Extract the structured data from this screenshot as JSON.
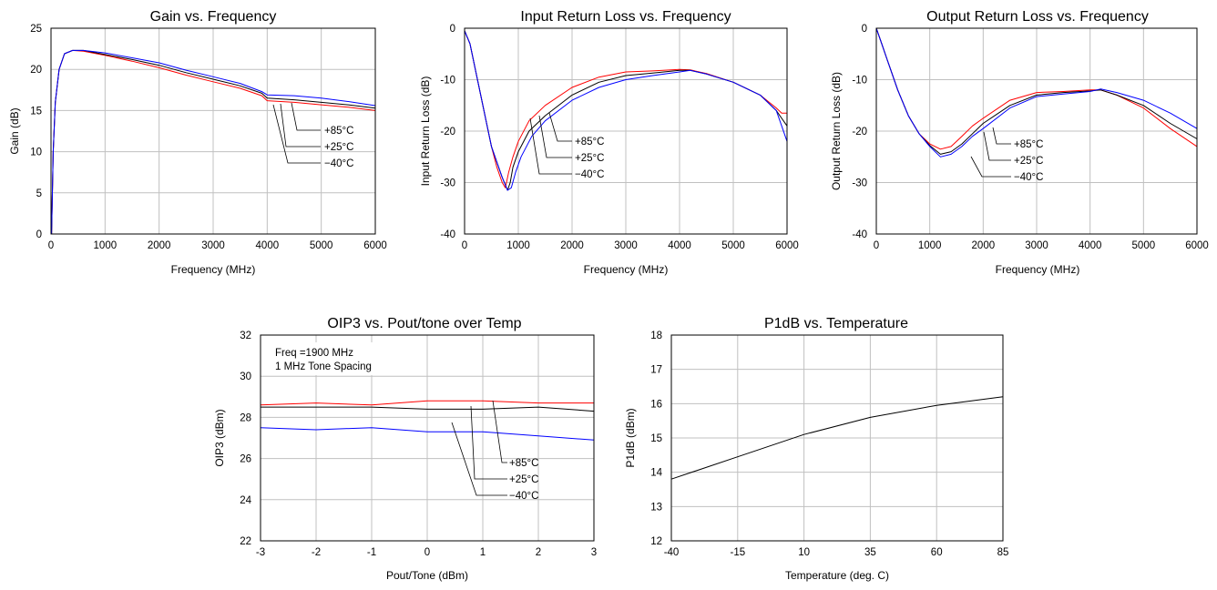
{
  "colors": {
    "hot": "#ff0000",
    "room": "#000000",
    "cold": "#0000ff"
  },
  "chart_data": [
    {
      "id": "gain",
      "type": "line",
      "title": "Gain vs. Frequency",
      "xlabel": "Frequency (MHz)",
      "ylabel": "Gain (dB)",
      "xlim": [
        0,
        6000
      ],
      "ylim": [
        0,
        25
      ],
      "xticks": [
        0,
        1000,
        2000,
        3000,
        4000,
        5000,
        6000
      ],
      "yticks": [
        0,
        5,
        10,
        15,
        20,
        25
      ],
      "grid": true,
      "legend": [
        "+85°C",
        "+25°C",
        "−40°C"
      ],
      "series": [
        {
          "name": "+85°C",
          "color": "#ff0000",
          "x": [
            10,
            40,
            80,
            150,
            250,
            400,
            600,
            1000,
            1500,
            2000,
            2500,
            3000,
            3500,
            3900,
            4000,
            4500,
            5000,
            5500,
            6000
          ],
          "y": [
            0,
            10,
            16,
            20,
            21.9,
            22.3,
            22.2,
            21.7,
            21,
            20.2,
            19.3,
            18.5,
            17.7,
            16.8,
            16.2,
            16,
            15.7,
            15.4,
            15
          ]
        },
        {
          "name": "+25°C",
          "color": "#000000",
          "x": [
            10,
            40,
            80,
            150,
            250,
            400,
            600,
            1000,
            1500,
            2000,
            2500,
            3000,
            3500,
            3900,
            4000,
            4500,
            5000,
            5500,
            6000
          ],
          "y": [
            0,
            10,
            16,
            20,
            21.9,
            22.3,
            22.3,
            21.8,
            21.2,
            20.5,
            19.6,
            18.8,
            18,
            17.1,
            16.5,
            16.3,
            16,
            15.7,
            15.3
          ]
        },
        {
          "name": "−40°C",
          "color": "#0000ff",
          "x": [
            10,
            40,
            80,
            150,
            250,
            400,
            600,
            1000,
            1500,
            2000,
            2500,
            3000,
            3500,
            3900,
            4000,
            4500,
            5000,
            5500,
            6000
          ],
          "y": [
            0,
            10,
            16,
            20,
            21.9,
            22.3,
            22.3,
            22,
            21.4,
            20.8,
            19.9,
            19.1,
            18.3,
            17.3,
            16.9,
            16.8,
            16.5,
            16.1,
            15.6
          ]
        }
      ]
    },
    {
      "id": "irl",
      "type": "line",
      "title": "Input Return Loss vs. Frequency",
      "xlabel": "Frequency (MHz)",
      "ylabel": "Input Return Loss (dB)",
      "xlim": [
        0,
        6000
      ],
      "ylim": [
        -40,
        0
      ],
      "xticks": [
        0,
        1000,
        2000,
        3000,
        4000,
        5000,
        6000
      ],
      "yticks": [
        0,
        -10,
        -20,
        -30,
        -40
      ],
      "grid": true,
      "legend": [
        "+85°C",
        "+25°C",
        "−40°C"
      ],
      "series": [
        {
          "name": "+85°C",
          "color": "#ff0000",
          "x": [
            0,
            100,
            200,
            300,
            400,
            500,
            600,
            700,
            760,
            820,
            900,
            1000,
            1200,
            1500,
            2000,
            2500,
            3000,
            3500,
            4000,
            4200,
            4500,
            5000,
            5500,
            5800,
            5900,
            6000
          ],
          "y": [
            -0.5,
            -3,
            -8,
            -13,
            -18,
            -23,
            -27,
            -30,
            -31,
            -28,
            -25,
            -22,
            -18,
            -15,
            -11.5,
            -9.5,
            -8.5,
            -8.3,
            -8,
            -8.1,
            -8.8,
            -10.5,
            -13,
            -15.5,
            -16.5,
            -16.5
          ]
        },
        {
          "name": "+25°C",
          "color": "#000000",
          "x": [
            0,
            100,
            200,
            300,
            400,
            500,
            600,
            700,
            800,
            850,
            900,
            1000,
            1200,
            1500,
            2000,
            2500,
            3000,
            3500,
            4000,
            4200,
            4500,
            5000,
            5500,
            5800,
            5900,
            6000
          ],
          "y": [
            -0.5,
            -3,
            -8,
            -13,
            -18,
            -23,
            -26,
            -29,
            -31.5,
            -30,
            -27,
            -24,
            -20,
            -17,
            -13,
            -10.5,
            -9.2,
            -8.7,
            -8.2,
            -8.2,
            -8.9,
            -10.5,
            -13,
            -16,
            -17.5,
            -19
          ]
        },
        {
          "name": "−40°C",
          "color": "#0000ff",
          "x": [
            0,
            100,
            200,
            300,
            400,
            500,
            600,
            700,
            800,
            870,
            950,
            1050,
            1250,
            1500,
            2000,
            2500,
            3000,
            3500,
            4000,
            4200,
            4500,
            5000,
            5500,
            5800,
            5900,
            6000
          ],
          "y": [
            -0.5,
            -3,
            -8,
            -13,
            -18,
            -23,
            -26,
            -29,
            -31.5,
            -31,
            -28,
            -25,
            -21,
            -18,
            -14,
            -11.5,
            -10,
            -9.2,
            -8.5,
            -8.2,
            -8.9,
            -10.5,
            -13,
            -16,
            -19,
            -22
          ]
        }
      ]
    },
    {
      "id": "orl",
      "type": "line",
      "title": "Output Return Loss vs. Frequency",
      "xlabel": "Frequency (MHz)",
      "ylabel": "Output Return Loss (dB)",
      "xlim": [
        0,
        6000
      ],
      "ylim": [
        -40,
        0
      ],
      "xticks": [
        0,
        1000,
        2000,
        3000,
        4000,
        5000,
        6000
      ],
      "yticks": [
        0,
        -10,
        -20,
        -30,
        -40
      ],
      "grid": true,
      "legend": [
        "+85°C",
        "+25°C",
        "−40°C"
      ],
      "series": [
        {
          "name": "+85°C",
          "color": "#ff0000",
          "x": [
            0,
            100,
            200,
            300,
            400,
            600,
            800,
            1000,
            1200,
            1400,
            1600,
            1800,
            2000,
            2500,
            3000,
            3500,
            4000,
            4200,
            4500,
            5000,
            5500,
            6000
          ],
          "y": [
            0,
            -3,
            -6,
            -9,
            -12,
            -17,
            -20.5,
            -22.5,
            -23.5,
            -23,
            -21,
            -19,
            -17.5,
            -14,
            -12.5,
            -12.3,
            -12,
            -12,
            -13,
            -15.5,
            -19.5,
            -23
          ]
        },
        {
          "name": "+25°C",
          "color": "#000000",
          "x": [
            0,
            100,
            200,
            300,
            400,
            600,
            800,
            1000,
            1200,
            1400,
            1600,
            1800,
            2000,
            2500,
            3000,
            3500,
            4000,
            4200,
            4500,
            5000,
            5500,
            6000
          ],
          "y": [
            0,
            -3,
            -6,
            -9,
            -12,
            -17,
            -20.5,
            -22.8,
            -24.5,
            -24,
            -22.5,
            -20.5,
            -18.5,
            -15,
            -13,
            -12.5,
            -12.2,
            -12,
            -13,
            -15,
            -18.5,
            -21.5
          ]
        },
        {
          "name": "−40°C",
          "color": "#0000ff",
          "x": [
            0,
            100,
            200,
            300,
            400,
            600,
            800,
            1000,
            1200,
            1400,
            1600,
            1800,
            2000,
            2500,
            3000,
            3500,
            4000,
            4200,
            4500,
            5000,
            5500,
            6000
          ],
          "y": [
            0,
            -3,
            -6,
            -9,
            -12,
            -17,
            -20.5,
            -23,
            -25,
            -24.5,
            -23,
            -21,
            -19.5,
            -15.5,
            -13.3,
            -12.8,
            -12.3,
            -11.8,
            -12.5,
            -14,
            -16.5,
            -19.5
          ]
        }
      ]
    },
    {
      "id": "oip3",
      "type": "line",
      "title": "OIP3 vs. Pout/tone over Temp",
      "xlabel": "Pout/Tone (dBm)",
      "ylabel": "OIP3 (dBm)",
      "xlim": [
        -3,
        3
      ],
      "ylim": [
        22,
        32
      ],
      "xticks": [
        -3,
        -2,
        -1,
        0,
        1,
        2,
        3
      ],
      "yticks": [
        22,
        24,
        26,
        28,
        30,
        32
      ],
      "grid": true,
      "annotation": [
        "Freq =1900 MHz",
        "1 MHz Tone Spacing"
      ],
      "legend": [
        "+85°C",
        "+25°C",
        "−40°C"
      ],
      "series": [
        {
          "name": "+85°C",
          "color": "#ff0000",
          "x": [
            -3,
            -2,
            -1,
            0,
            1,
            2,
            3
          ],
          "y": [
            28.6,
            28.7,
            28.6,
            28.8,
            28.8,
            28.7,
            28.7
          ]
        },
        {
          "name": "+25°C",
          "color": "#000000",
          "x": [
            -3,
            -2,
            -1,
            0,
            1,
            2,
            3
          ],
          "y": [
            28.5,
            28.5,
            28.5,
            28.4,
            28.4,
            28.5,
            28.3
          ]
        },
        {
          "name": "−40°C",
          "color": "#0000ff",
          "x": [
            -3,
            -2,
            -1,
            0,
            1,
            2,
            3
          ],
          "y": [
            27.5,
            27.4,
            27.5,
            27.3,
            27.3,
            27.1,
            26.9
          ]
        }
      ]
    },
    {
      "id": "p1db",
      "type": "line",
      "title": "P1dB vs. Temperature",
      "xlabel": "Temperature (deg. C)",
      "ylabel": "P1dB (dBm)",
      "xlim": [
        -40,
        85
      ],
      "ylim": [
        12,
        18
      ],
      "xticks": [
        -40,
        -15,
        10,
        35,
        60,
        85
      ],
      "yticks": [
        12,
        13,
        14,
        15,
        16,
        17,
        18
      ],
      "grid": true,
      "series": [
        {
          "color": "#000000",
          "x": [
            -40,
            -15,
            10,
            35,
            60,
            85
          ],
          "y": [
            13.8,
            14.45,
            15.1,
            15.6,
            15.95,
            16.2
          ]
        }
      ]
    }
  ]
}
